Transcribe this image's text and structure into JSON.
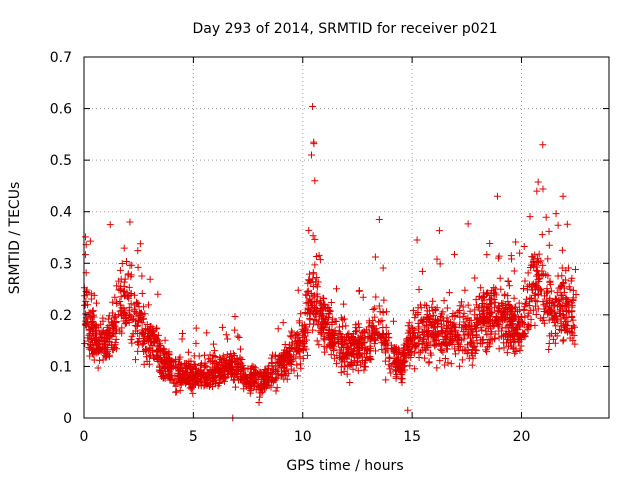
{
  "chart_data": {
    "type": "scatter",
    "title": "Day 293 of 2014, SRMTID for receiver p021",
    "xlabel": "GPS time / hours",
    "ylabel": "SRMTID / TECUs",
    "xlim": [
      0,
      24
    ],
    "ylim": [
      0,
      0.7
    ],
    "xticks": [
      0,
      5,
      10,
      15,
      20
    ],
    "xtick_labels": [
      "0",
      "5",
      "10",
      "15",
      "20"
    ],
    "yticks": [
      0,
      0.1,
      0.2,
      0.3,
      0.4,
      0.5,
      0.6,
      0.7
    ],
    "ytick_labels": [
      "0",
      "0.1",
      "0.2",
      "0.3",
      "0.4",
      "0.5",
      "0.6",
      "0.7"
    ],
    "grid": true,
    "marker": "+",
    "series": [
      {
        "name": "p021",
        "color": "#e00000",
        "x_range": [
          0,
          22.5
        ],
        "trend": [
          [
            0.0,
            0.22
          ],
          [
            0.5,
            0.15
          ],
          [
            1.0,
            0.14
          ],
          [
            1.5,
            0.2
          ],
          [
            2.0,
            0.25
          ],
          [
            2.5,
            0.17
          ],
          [
            3.0,
            0.15
          ],
          [
            3.5,
            0.12
          ],
          [
            4.0,
            0.09
          ],
          [
            5.0,
            0.08
          ],
          [
            6.0,
            0.09
          ],
          [
            7.0,
            0.1
          ],
          [
            7.5,
            0.07
          ],
          [
            8.5,
            0.08
          ],
          [
            9.0,
            0.1
          ],
          [
            9.5,
            0.13
          ],
          [
            10.0,
            0.15
          ],
          [
            10.4,
            0.25
          ],
          [
            11.0,
            0.18
          ],
          [
            11.5,
            0.15
          ],
          [
            12.0,
            0.13
          ],
          [
            13.0,
            0.14
          ],
          [
            13.5,
            0.18
          ],
          [
            14.0,
            0.12
          ],
          [
            14.5,
            0.1
          ],
          [
            15.0,
            0.16
          ],
          [
            16.0,
            0.17
          ],
          [
            17.0,
            0.16
          ],
          [
            18.0,
            0.18
          ],
          [
            19.0,
            0.2
          ],
          [
            20.0,
            0.17
          ],
          [
            20.5,
            0.27
          ],
          [
            21.0,
            0.25
          ],
          [
            21.5,
            0.2
          ],
          [
            22.0,
            0.21
          ],
          [
            22.5,
            0.19
          ]
        ],
        "notable_points": [
          [
            10.45,
            0.604
          ],
          [
            10.5,
            0.535
          ],
          [
            10.4,
            0.51
          ],
          [
            10.55,
            0.46
          ],
          [
            1.2,
            0.375
          ],
          [
            2.1,
            0.38
          ],
          [
            13.5,
            0.385
          ],
          [
            18.9,
            0.43
          ],
          [
            20.7,
            0.44
          ],
          [
            21.9,
            0.43
          ],
          [
            6.8,
            0.0
          ],
          [
            14.8,
            0.015
          ],
          [
            8.0,
            0.03
          ]
        ]
      }
    ]
  }
}
